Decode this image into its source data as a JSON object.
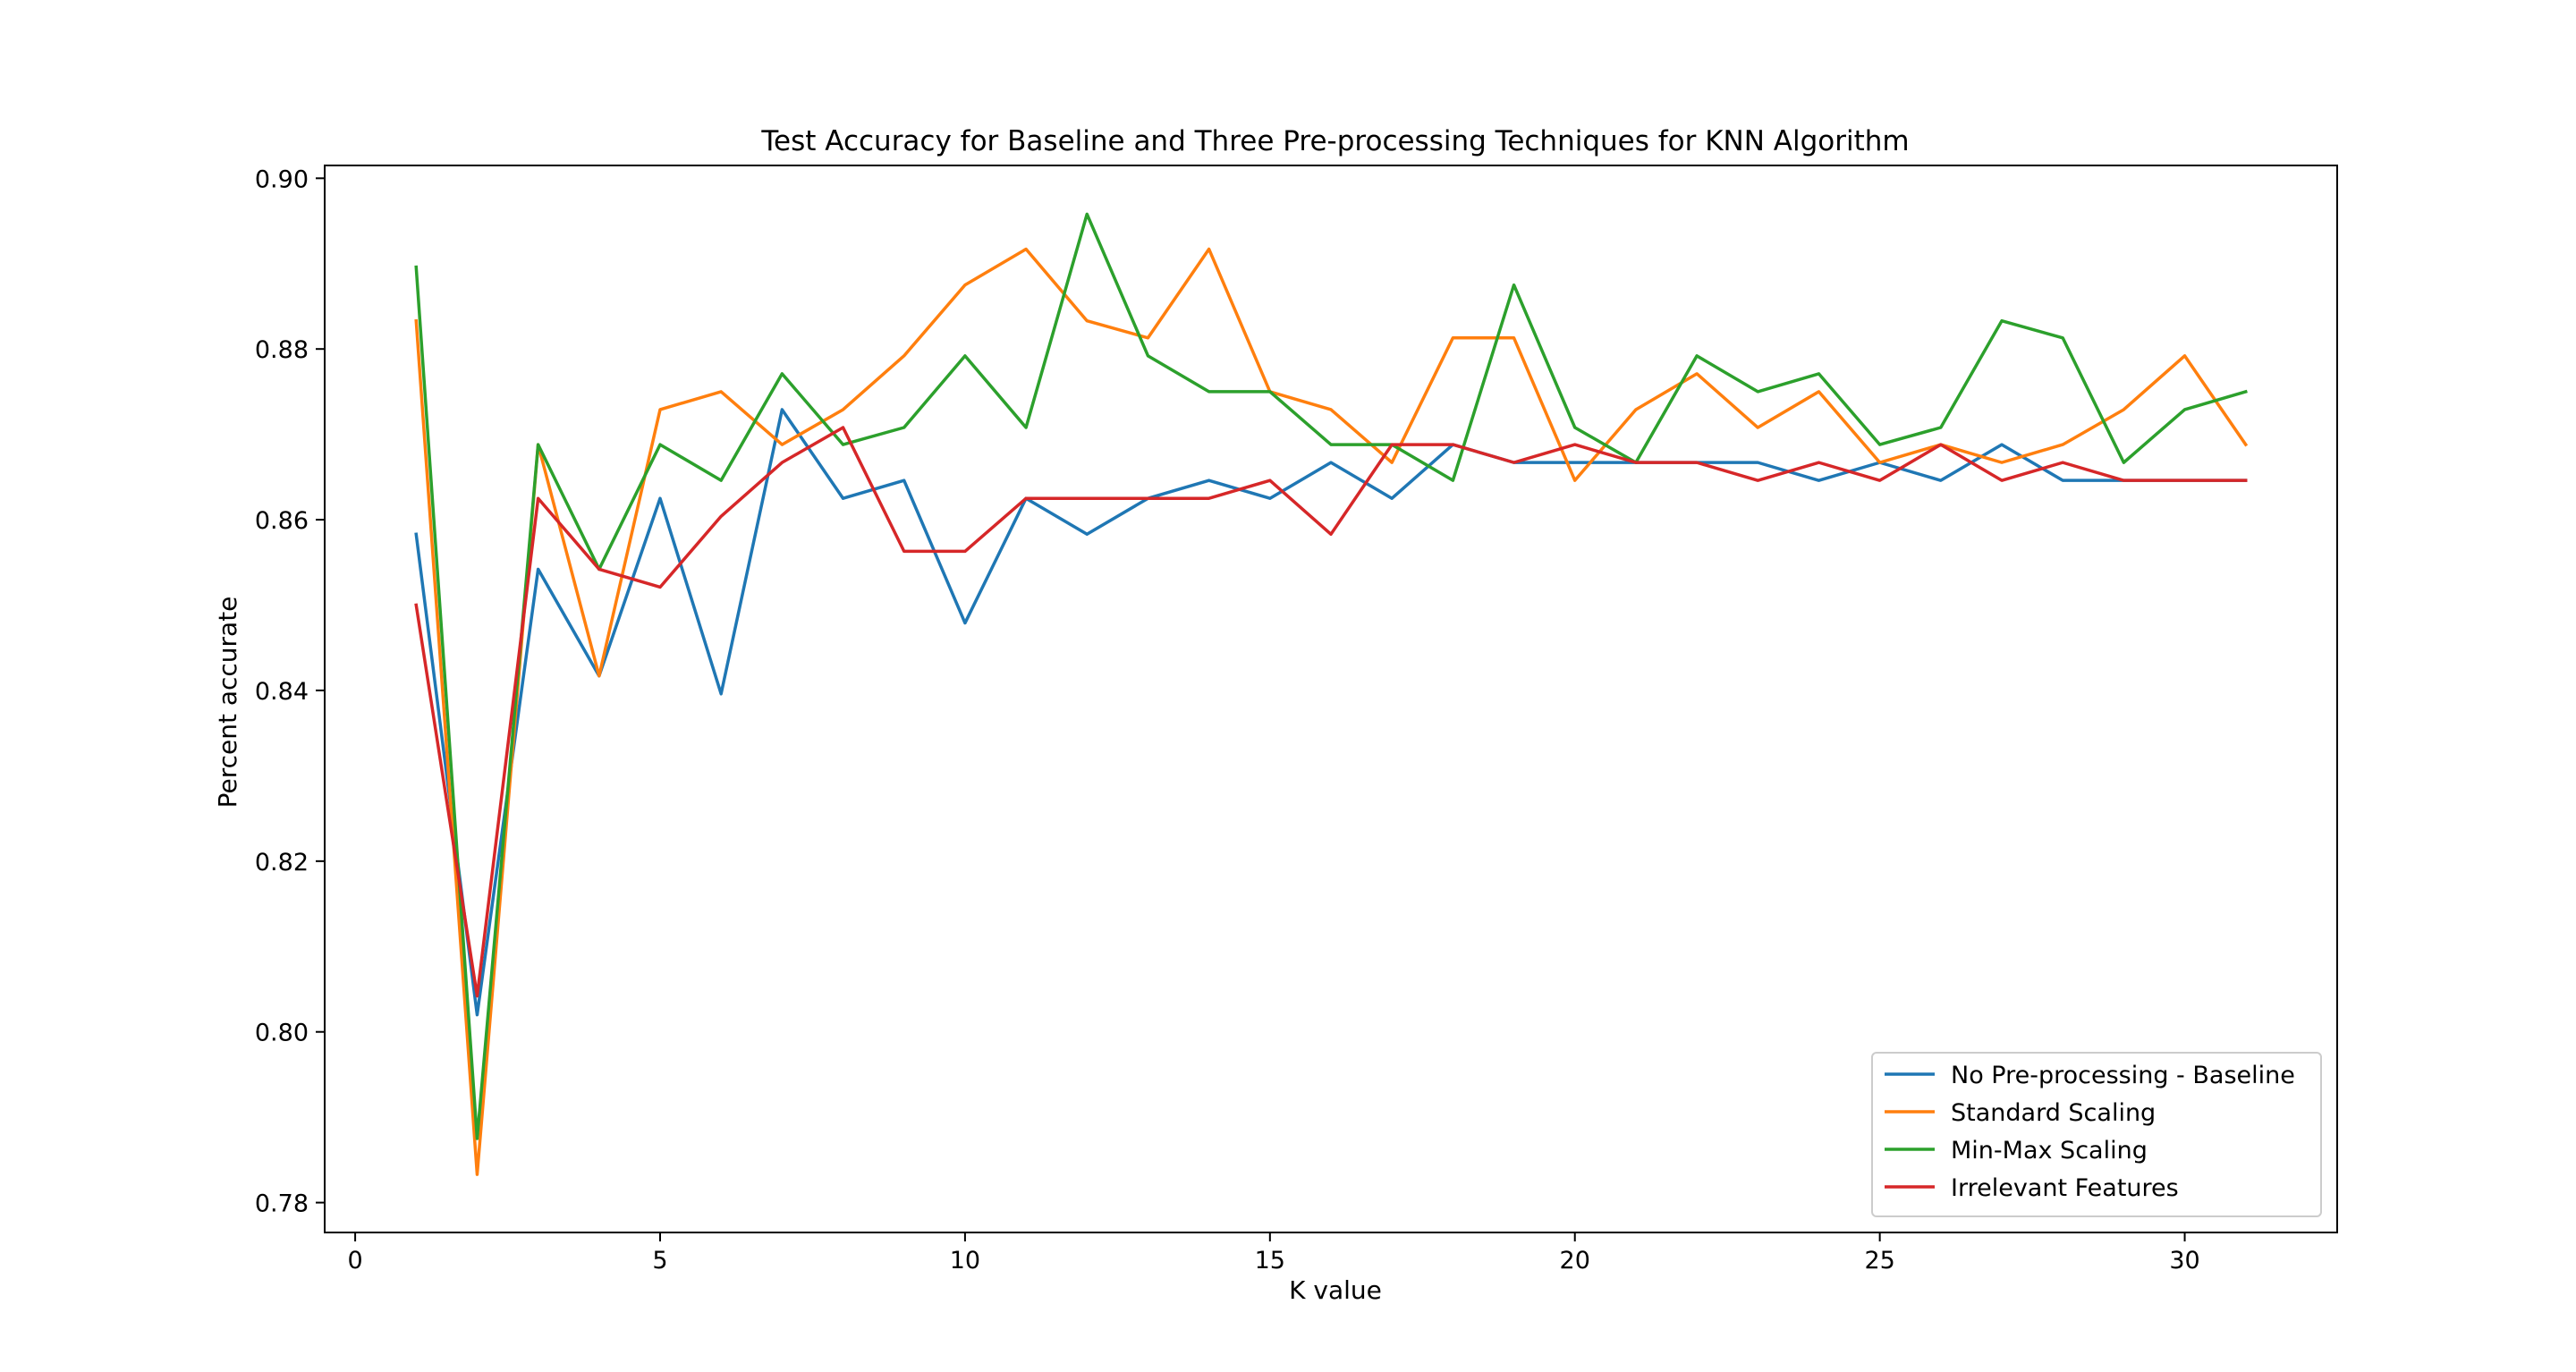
{
  "chart_data": {
    "type": "line",
    "title": "Test Accuracy for Baseline and Three Pre-processing Techniques for KNN Algorithm",
    "xlabel": "K value",
    "ylabel": "Percent accurate",
    "xlim": [
      -0.5,
      32.5
    ],
    "ylim": [
      0.7765,
      0.9015
    ],
    "xticks": [
      0,
      5,
      10,
      15,
      20,
      25,
      30
    ],
    "yticks": [
      0.78,
      0.8,
      0.82,
      0.84,
      0.86,
      0.88,
      0.9
    ],
    "xtick_labels": [
      "0",
      "5",
      "10",
      "15",
      "20",
      "25",
      "30"
    ],
    "ytick_labels": [
      "0.78",
      "0.80",
      "0.82",
      "0.84",
      "0.86",
      "0.88",
      "0.90"
    ],
    "grid": false,
    "legend_position": "lower-right",
    "x": [
      1,
      2,
      3,
      4,
      5,
      6,
      7,
      8,
      9,
      10,
      11,
      12,
      13,
      14,
      15,
      16,
      17,
      18,
      19,
      20,
      21,
      22,
      23,
      24,
      25,
      26,
      27,
      28,
      29,
      30,
      31
    ],
    "series": [
      {
        "name": "No Pre-processing - Baseline",
        "color": "#1f77b4",
        "values": [
          0.8583,
          0.802,
          0.8542,
          0.8417,
          0.8625,
          0.8396,
          0.8729,
          0.8625,
          0.8646,
          0.8479,
          0.8625,
          0.8583,
          0.8625,
          0.8646,
          0.8625,
          0.8667,
          0.8625,
          0.8688,
          0.8667,
          0.8667,
          0.8667,
          0.8667,
          0.8667,
          0.8646,
          0.8667,
          0.8646,
          0.8688,
          0.8646,
          0.8646,
          0.8646,
          0.8646
        ]
      },
      {
        "name": "Standard Scaling",
        "color": "#ff7f0e",
        "values": [
          0.8833,
          0.7833,
          0.8688,
          0.8417,
          0.8729,
          0.875,
          0.8688,
          0.8729,
          0.8792,
          0.8875,
          0.8917,
          0.8833,
          0.8813,
          0.8917,
          0.875,
          0.8729,
          0.8667,
          0.8813,
          0.8813,
          0.8646,
          0.8729,
          0.8771,
          0.8708,
          0.875,
          0.8667,
          0.8688,
          0.8667,
          0.8688,
          0.8729,
          0.8792,
          0.8688
        ]
      },
      {
        "name": "Min-Max Scaling",
        "color": "#2ca02c",
        "values": [
          0.8896,
          0.7875,
          0.8688,
          0.8542,
          0.8688,
          0.8646,
          0.8771,
          0.8688,
          0.8708,
          0.8792,
          0.8708,
          0.8958,
          0.8792,
          0.875,
          0.875,
          0.8688,
          0.8688,
          0.8646,
          0.8875,
          0.8708,
          0.8667,
          0.8792,
          0.875,
          0.8771,
          0.8688,
          0.8708,
          0.8833,
          0.8813,
          0.8667,
          0.8729,
          0.875
        ]
      },
      {
        "name": "Irrelevant Features",
        "color": "#d62728",
        "values": [
          0.85,
          0.8042,
          0.8625,
          0.8542,
          0.8521,
          0.8604,
          0.8667,
          0.8708,
          0.8563,
          0.8563,
          0.8625,
          0.8625,
          0.8625,
          0.8625,
          0.8646,
          0.8583,
          0.8688,
          0.8688,
          0.8667,
          0.8688,
          0.8667,
          0.8667,
          0.8646,
          0.8667,
          0.8646,
          0.8688,
          0.8646,
          0.8667,
          0.8646,
          0.8646,
          0.8646
        ]
      }
    ]
  }
}
